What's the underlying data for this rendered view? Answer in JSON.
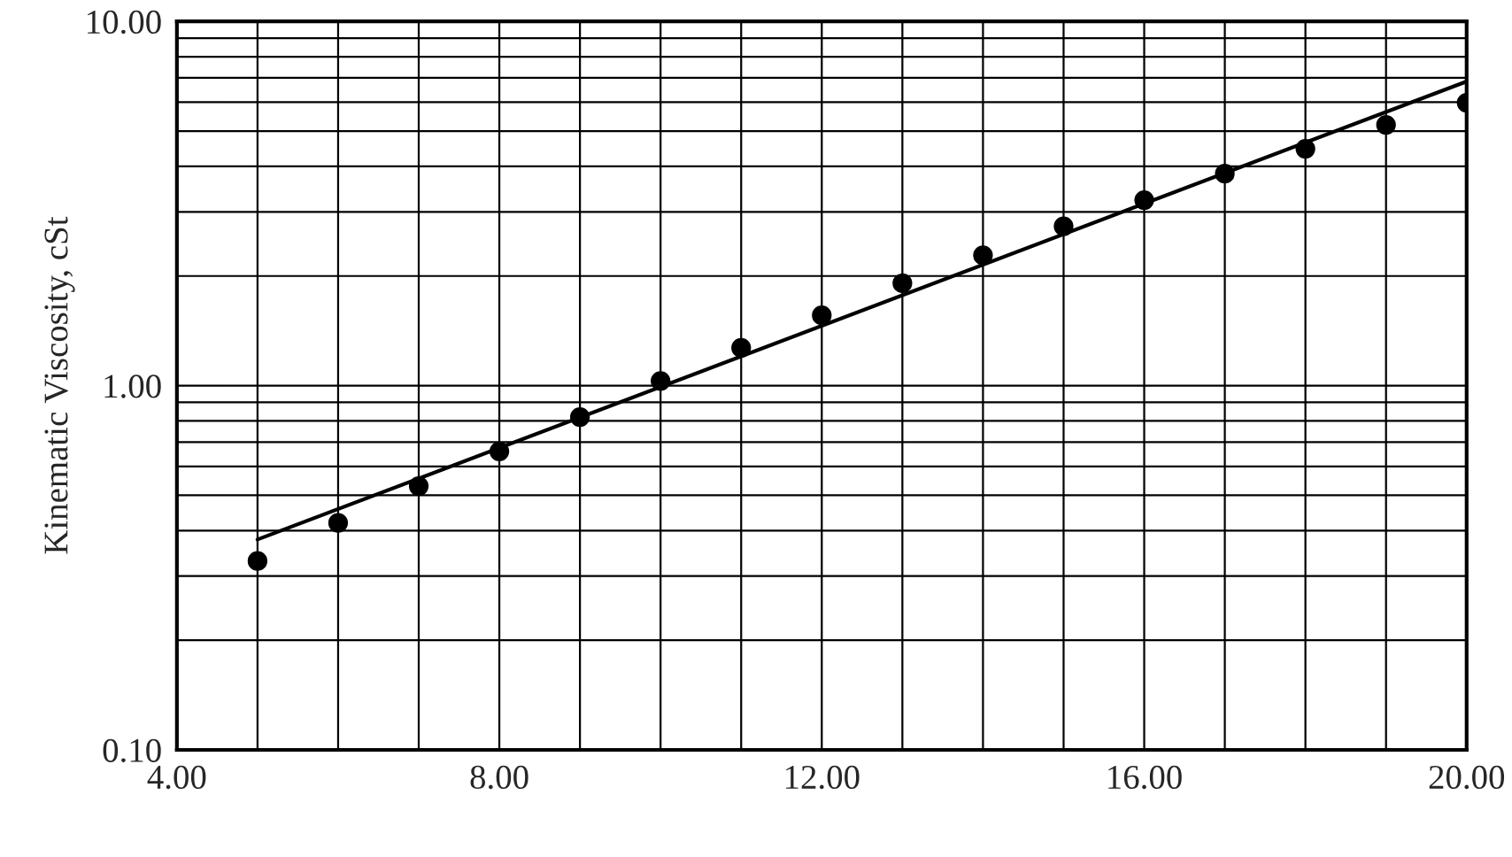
{
  "chart_data": {
    "type": "scatter",
    "ylabel": "Kinematic Viscosity, cSt",
    "log": "y",
    "grid": true,
    "marker": "circle",
    "xlim": [
      4,
      20
    ],
    "xticks": [
      {
        "value": 4,
        "label": "4.00"
      },
      {
        "value": 5,
        "label": null
      },
      {
        "value": 6,
        "label": null
      },
      {
        "value": 7,
        "label": null
      },
      {
        "value": 8,
        "label": "8.00"
      },
      {
        "value": 9,
        "label": null
      },
      {
        "value": 10,
        "label": null
      },
      {
        "value": 11,
        "label": null
      },
      {
        "value": 12,
        "label": "12.00"
      },
      {
        "value": 13,
        "label": null
      },
      {
        "value": 14,
        "label": null
      },
      {
        "value": 15,
        "label": null
      },
      {
        "value": 16,
        "label": "16.00"
      },
      {
        "value": 17,
        "label": null
      },
      {
        "value": 18,
        "label": null
      },
      {
        "value": 19,
        "label": null
      },
      {
        "value": 20,
        "label": "20.00"
      }
    ],
    "ylim": [
      0.1,
      10
    ],
    "yticks": [
      {
        "value": 0.1,
        "label": "0.10"
      },
      {
        "value": 0.2,
        "label": null
      },
      {
        "value": 0.3,
        "label": null
      },
      {
        "value": 0.4,
        "label": null
      },
      {
        "value": 0.5,
        "label": null
      },
      {
        "value": 0.6,
        "label": null
      },
      {
        "value": 0.7,
        "label": null
      },
      {
        "value": 0.8,
        "label": null
      },
      {
        "value": 0.9,
        "label": null
      },
      {
        "value": 1,
        "label": "1.00"
      },
      {
        "value": 2,
        "label": null
      },
      {
        "value": 3,
        "label": null
      },
      {
        "value": 4,
        "label": null
      },
      {
        "value": 5,
        "label": null
      },
      {
        "value": 6,
        "label": null
      },
      {
        "value": 7,
        "label": null
      },
      {
        "value": 8,
        "label": null
      },
      {
        "value": 9,
        "label": null
      },
      {
        "value": 10,
        "label": "10.00"
      }
    ],
    "series": [
      {
        "color": "#000000",
        "x": [
          5,
          6,
          7,
          8,
          9,
          10,
          11,
          12,
          13,
          14,
          15,
          16,
          17,
          18,
          19,
          20
        ],
        "values": [
          0.33,
          0.42,
          0.53,
          0.66,
          0.82,
          1.03,
          1.27,
          1.56,
          1.91,
          2.28,
          2.74,
          3.23,
          3.82,
          4.47,
          5.2,
          5.98
        ]
      },
      {
        "type": "line",
        "color": "#000000",
        "marker": "none",
        "line_style": "solid",
        "x": [
          5,
          20
        ],
        "values": [
          0.378,
          6.84
        ]
      }
    ]
  }
}
